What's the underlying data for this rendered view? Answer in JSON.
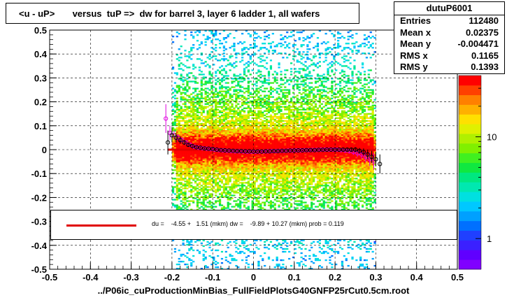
{
  "title": "<u - uP>       versus  tuP =>  dw for barrel 3, layer 6 ladder 1, all wafers",
  "stats": {
    "name": "dutuP6001",
    "rows": [
      {
        "label": "Entries",
        "value": "112480"
      },
      {
        "label": "Mean x",
        "value": "0.02375"
      },
      {
        "label": "Mean y",
        "value": "-0.004471"
      },
      {
        "label": "RMS x",
        "value": "0.1165"
      },
      {
        "label": "RMS y",
        "value": "0.1393"
      }
    ]
  },
  "legend_text": "du =    -4.55 +   1.51 (mkm) dw =    -9.89 + 10.27 (mkm) prob = 0.119",
  "x_file_label": "../P06ic_cuProductionMinBias_FullFieldPlotsG40GNFP25rCut0.5cm.root",
  "colors": {
    "fit_line": "#e00000",
    "profile_black": "#000000",
    "profile_magenta": "#e000e0"
  },
  "chart_data": {
    "type": "heatmap",
    "xlim": [
      -0.5,
      0.5
    ],
    "ylim": [
      -0.5,
      0.5
    ],
    "x_ticks": [
      "-0.5",
      "-0.4",
      "-0.3",
      "-0.2",
      "-0.1",
      "0",
      "0.1",
      "0.2",
      "0.3",
      "0.4",
      "0.5"
    ],
    "y_ticks": [
      "-0.5",
      "-0.4",
      "-0.3",
      "-0.2",
      "-0.1",
      "0",
      "0.1",
      "0.2",
      "0.3",
      "0.4",
      "0.5"
    ],
    "z_scale": "log",
    "z_ticks": [
      "1",
      "10"
    ],
    "z_tick_values": [
      1,
      10
    ],
    "z_range": [
      0.5,
      40
    ],
    "occupied_x_range": [
      -0.2,
      0.3
    ],
    "fit": {
      "x0": -0.21,
      "x1": 0.3,
      "y0": 0.0,
      "y1": -0.001
    },
    "profile_black": {
      "x": [
        -0.21,
        -0.2,
        -0.19,
        -0.18,
        -0.17,
        -0.16,
        -0.15,
        -0.14,
        -0.13,
        -0.12,
        -0.11,
        -0.1,
        -0.09,
        -0.08,
        -0.07,
        -0.06,
        -0.05,
        -0.04,
        -0.03,
        -0.02,
        -0.01,
        0.0,
        0.01,
        0.02,
        0.03,
        0.04,
        0.05,
        0.06,
        0.07,
        0.08,
        0.09,
        0.1,
        0.11,
        0.12,
        0.13,
        0.14,
        0.15,
        0.16,
        0.17,
        0.18,
        0.19,
        0.2,
        0.21,
        0.22,
        0.23,
        0.24,
        0.25,
        0.26,
        0.27,
        0.28,
        0.29,
        0.3,
        0.31
      ],
      "y": [
        0.03,
        0.06,
        0.05,
        0.04,
        0.03,
        0.02,
        0.015,
        0.01,
        0.008,
        0.005,
        0.004,
        0.003,
        0.0,
        -0.002,
        -0.003,
        -0.004,
        -0.005,
        -0.006,
        -0.006,
        -0.007,
        -0.007,
        -0.008,
        -0.008,
        -0.008,
        -0.007,
        -0.007,
        -0.006,
        -0.006,
        -0.005,
        -0.005,
        -0.004,
        -0.004,
        -0.003,
        -0.003,
        -0.002,
        -0.002,
        -0.002,
        -0.001,
        -0.001,
        0.0,
        0.0,
        0.0,
        0.0,
        0.0,
        0.0,
        0.0,
        0.0,
        -0.005,
        -0.01,
        -0.02,
        -0.03,
        -0.04,
        -0.06
      ],
      "yerr": [
        0.05,
        0.03,
        0.02,
        0.015,
        0.01,
        0.008,
        0.006,
        0.005,
        0.004,
        0.004,
        0.003,
        0.003,
        0.003,
        0.003,
        0.003,
        0.003,
        0.003,
        0.003,
        0.003,
        0.003,
        0.003,
        0.003,
        0.003,
        0.003,
        0.003,
        0.003,
        0.003,
        0.003,
        0.003,
        0.003,
        0.003,
        0.003,
        0.003,
        0.003,
        0.003,
        0.003,
        0.003,
        0.003,
        0.003,
        0.003,
        0.003,
        0.004,
        0.004,
        0.005,
        0.006,
        0.008,
        0.01,
        0.012,
        0.015,
        0.02,
        0.025,
        0.03,
        0.04
      ]
    },
    "profile_magenta": {
      "x": [
        -0.215,
        -0.205,
        -0.195,
        -0.185,
        -0.175,
        -0.165,
        -0.155,
        -0.145,
        -0.135,
        -0.125,
        -0.115,
        -0.105,
        -0.095,
        -0.085,
        -0.075,
        -0.065,
        -0.055,
        -0.045,
        -0.035,
        -0.025,
        -0.015,
        -0.005,
        0.005,
        0.015,
        0.025,
        0.035,
        0.045,
        0.055,
        0.065,
        0.075,
        0.085,
        0.095,
        0.105,
        0.115,
        0.125,
        0.135,
        0.145,
        0.155,
        0.165,
        0.175,
        0.185,
        0.195,
        0.205,
        0.215,
        0.225,
        0.235,
        0.245,
        0.255,
        0.265,
        0.275,
        0.285,
        0.295
      ],
      "y": [
        0.13,
        0.07,
        0.06,
        0.05,
        0.04,
        0.03,
        0.02,
        0.012,
        0.008,
        0.006,
        0.004,
        0.002,
        0.0,
        -0.002,
        -0.003,
        -0.005,
        -0.006,
        -0.007,
        -0.007,
        -0.008,
        -0.009,
        -0.009,
        -0.009,
        -0.008,
        -0.008,
        -0.007,
        -0.006,
        -0.006,
        -0.005,
        -0.005,
        -0.004,
        -0.004,
        -0.003,
        -0.003,
        -0.002,
        -0.002,
        -0.001,
        -0.001,
        0.0,
        0.0,
        0.0,
        0.0,
        0.0,
        -0.002,
        -0.004,
        -0.006,
        -0.01,
        -0.015,
        -0.02,
        -0.03,
        -0.04,
        -0.05
      ],
      "yerr": [
        0.06,
        0.03,
        0.02,
        0.015,
        0.012,
        0.009,
        0.007,
        0.006,
        0.005,
        0.004,
        0.004,
        0.003,
        0.003,
        0.003,
        0.003,
        0.003,
        0.003,
        0.003,
        0.003,
        0.003,
        0.003,
        0.003,
        0.003,
        0.003,
        0.003,
        0.003,
        0.003,
        0.003,
        0.003,
        0.003,
        0.003,
        0.003,
        0.003,
        0.003,
        0.003,
        0.003,
        0.003,
        0.003,
        0.003,
        0.004,
        0.004,
        0.005,
        0.006,
        0.007,
        0.008,
        0.01,
        0.012,
        0.015,
        0.018,
        0.022,
        0.028,
        0.035
      ]
    }
  }
}
